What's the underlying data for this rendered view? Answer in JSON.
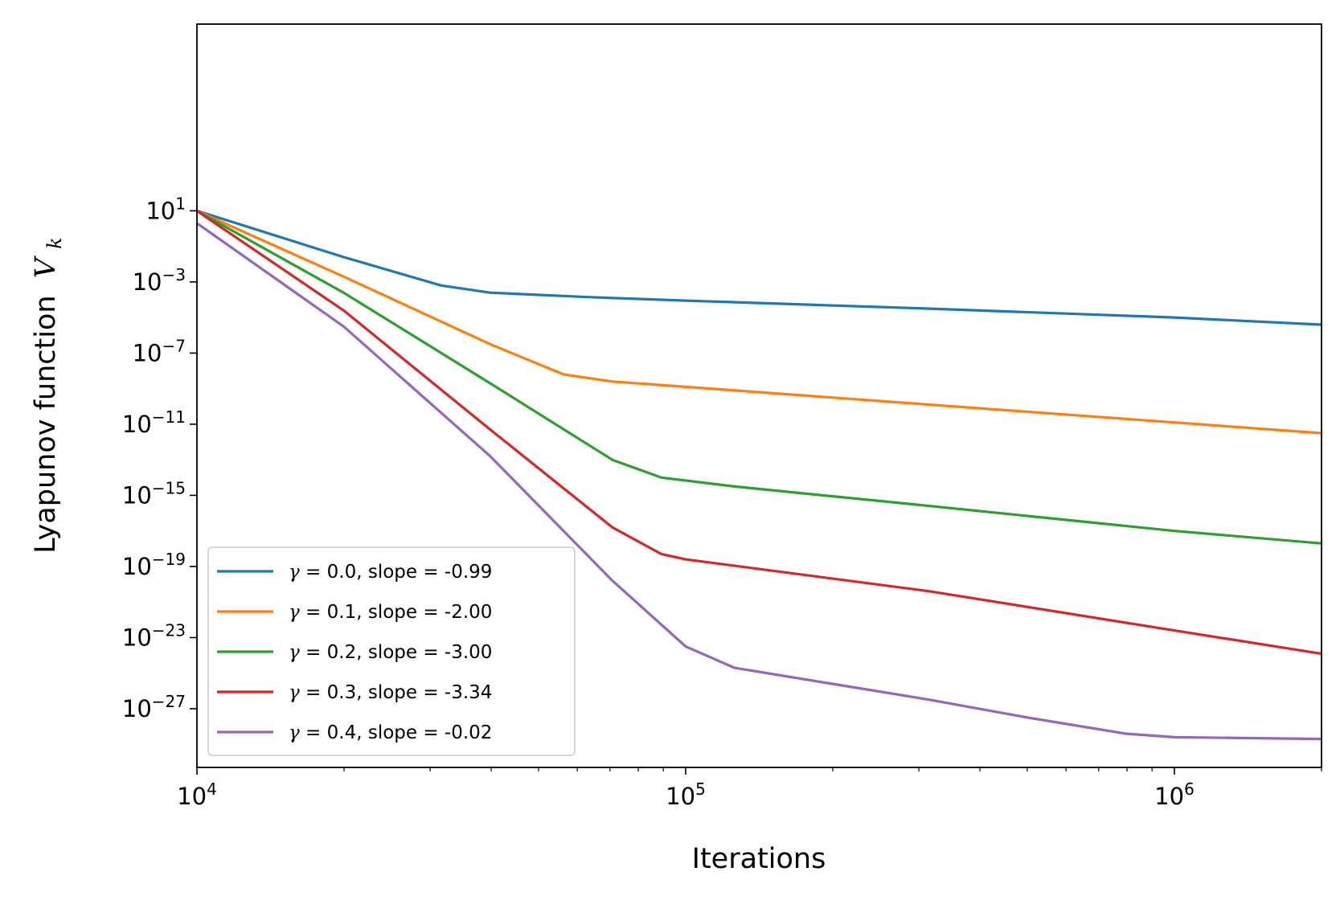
{
  "chart_data": {
    "type": "line",
    "xscale": "log",
    "yscale": "log",
    "xlabel": "Iterations",
    "ylabel": "Lyapunov function",
    "ylabel_symbol": "V",
    "ylabel_subscript": "k",
    "xlim": [
      10000,
      2000000
    ],
    "ylim_exp": [
      -30.3,
      11.5
    ],
    "x_ticks": [
      {
        "exp": 4,
        "base": "10",
        "sup": "4"
      },
      {
        "exp": 5,
        "base": "10",
        "sup": "5"
      },
      {
        "exp": 6,
        "base": "10",
        "sup": "6"
      }
    ],
    "y_ticks": [
      {
        "exp": 1,
        "base": "10",
        "sup": "1"
      },
      {
        "exp": -3,
        "base": "10",
        "sup": "−3"
      },
      {
        "exp": -7,
        "base": "10",
        "sup": "−7"
      },
      {
        "exp": -11,
        "base": "10",
        "sup": "−11"
      },
      {
        "exp": -15,
        "base": "10",
        "sup": "−15"
      },
      {
        "exp": -19,
        "base": "10",
        "sup": "−19"
      },
      {
        "exp": -23,
        "base": "10",
        "sup": "−23"
      },
      {
        "exp": -27,
        "base": "10",
        "sup": "−27"
      }
    ],
    "legend_location": "lower-left",
    "series": [
      {
        "name": "γ = 0.0, slope = -0.99",
        "gamma_symbol": "γ",
        "label_rest": " = 0.0, slope = -0.99",
        "color": "#1f77b4",
        "points_log10": [
          [
            4.0,
            1.0
          ],
          [
            4.3,
            -1.6
          ],
          [
            4.5,
            -3.2
          ],
          [
            4.6,
            -3.6
          ],
          [
            4.8,
            -3.85
          ],
          [
            5.0,
            -4.05
          ],
          [
            5.5,
            -4.5
          ],
          [
            6.0,
            -5.0
          ],
          [
            6.3,
            -5.4
          ]
        ]
      },
      {
        "name": "γ = 0.1, slope = -2.00",
        "gamma_symbol": "γ",
        "label_rest": " = 0.1, slope = -2.00",
        "color": "#ff7f0e",
        "points_log10": [
          [
            4.0,
            1.0
          ],
          [
            4.3,
            -2.7
          ],
          [
            4.6,
            -6.5
          ],
          [
            4.75,
            -8.2
          ],
          [
            4.85,
            -8.6
          ],
          [
            5.0,
            -8.9
          ],
          [
            5.5,
            -9.9
          ],
          [
            6.0,
            -10.9
          ],
          [
            6.3,
            -11.5
          ]
        ]
      },
      {
        "name": "γ = 0.2, slope = -3.00",
        "gamma_symbol": "γ",
        "label_rest": " = 0.2, slope = -3.00",
        "color": "#2ca02c",
        "points_log10": [
          [
            4.0,
            1.0
          ],
          [
            4.3,
            -3.6
          ],
          [
            4.6,
            -8.7
          ],
          [
            4.85,
            -13.0
          ],
          [
            4.95,
            -14.0
          ],
          [
            5.1,
            -14.5
          ],
          [
            5.5,
            -15.6
          ],
          [
            6.0,
            -17.0
          ],
          [
            6.3,
            -17.7
          ]
        ]
      },
      {
        "name": "γ = 0.3, slope = -3.34",
        "gamma_symbol": "γ",
        "label_rest": " = 0.3, slope = -3.34",
        "color": "#d62728",
        "points_log10": [
          [
            4.0,
            1.0
          ],
          [
            4.3,
            -4.6
          ],
          [
            4.6,
            -11.3
          ],
          [
            4.85,
            -16.8
          ],
          [
            4.95,
            -18.3
          ],
          [
            5.0,
            -18.6
          ],
          [
            5.5,
            -20.4
          ],
          [
            6.0,
            -22.6
          ],
          [
            6.3,
            -23.9
          ]
        ]
      },
      {
        "name": "γ = 0.4, slope = -0.02",
        "gamma_symbol": "γ",
        "label_rest": " = 0.4, slope = -0.02",
        "color": "#9467bd",
        "points_log10": [
          [
            4.0,
            0.3
          ],
          [
            4.3,
            -5.5
          ],
          [
            4.6,
            -12.8
          ],
          [
            4.85,
            -19.8
          ],
          [
            5.0,
            -23.5
          ],
          [
            5.1,
            -24.7
          ],
          [
            5.3,
            -25.6
          ],
          [
            5.5,
            -26.5
          ],
          [
            5.7,
            -27.5
          ],
          [
            5.9,
            -28.4
          ],
          [
            6.0,
            -28.6
          ],
          [
            6.3,
            -28.7
          ]
        ]
      }
    ]
  }
}
